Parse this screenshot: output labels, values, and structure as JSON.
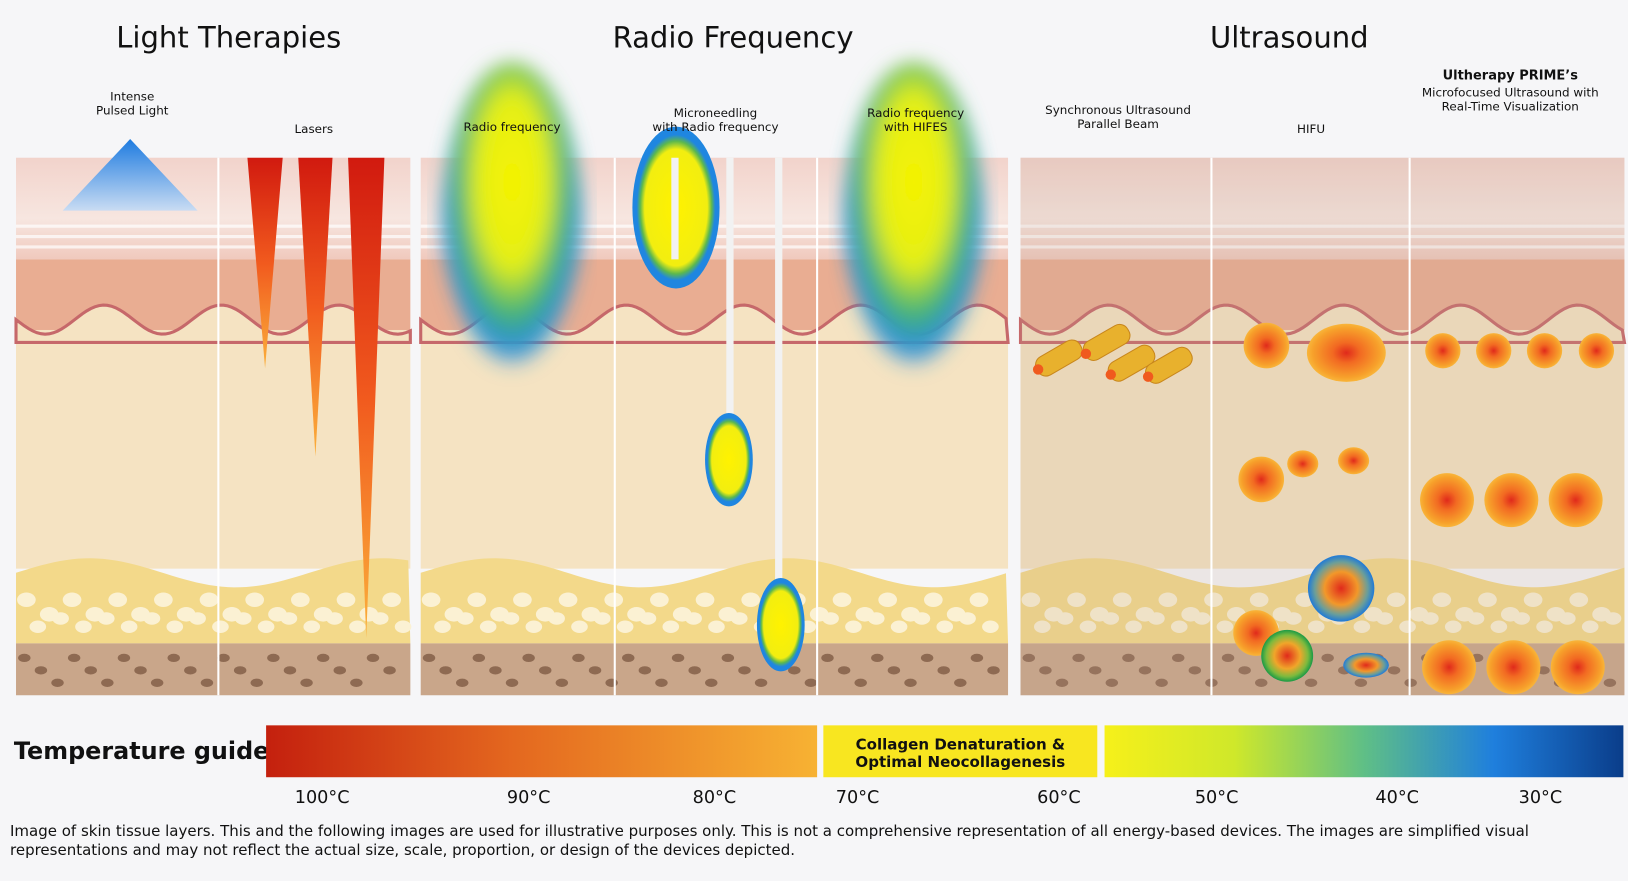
{
  "sections": [
    {
      "title": "Light Therapies"
    },
    {
      "title": "Radio Frequency"
    },
    {
      "title": "Ultrasound"
    }
  ],
  "devices": [
    {
      "lines": [
        "Intense",
        "Pulsed Light"
      ]
    },
    {
      "lines": [
        "Lasers"
      ]
    },
    {
      "lines": [
        "Radio frequency"
      ]
    },
    {
      "lines": [
        "Microneedling",
        "with Radio frequency"
      ]
    },
    {
      "lines": [
        "Radio frequency",
        "with HIFES"
      ]
    },
    {
      "lines": [
        "Synchronous Ultrasound",
        "Parallel Beam"
      ]
    },
    {
      "lines": [
        "HIFU"
      ]
    },
    {
      "title": "Ultherapy PRIME’s",
      "lines": [
        "Microfocused Ultrasound with",
        "Real-Time Visualization"
      ]
    }
  ],
  "temperature_guide": {
    "title": "Temperature guide",
    "band_label": [
      "Collagen Denaturation &",
      "Optimal Neocollagenesis"
    ],
    "scale": [
      "100°C",
      "90°C",
      "80°C",
      "70°C",
      "60°C",
      "50°C",
      "40°C",
      "30°C"
    ]
  },
  "caption": "Image of skin tissue layers. This and the following images are used for illustrative purposes only. This is not a comprehensive representation of all energy-based devices. The images are simplified visual representations and may not reflect the actual size, scale, proportion, or design of the devices depicted."
}
